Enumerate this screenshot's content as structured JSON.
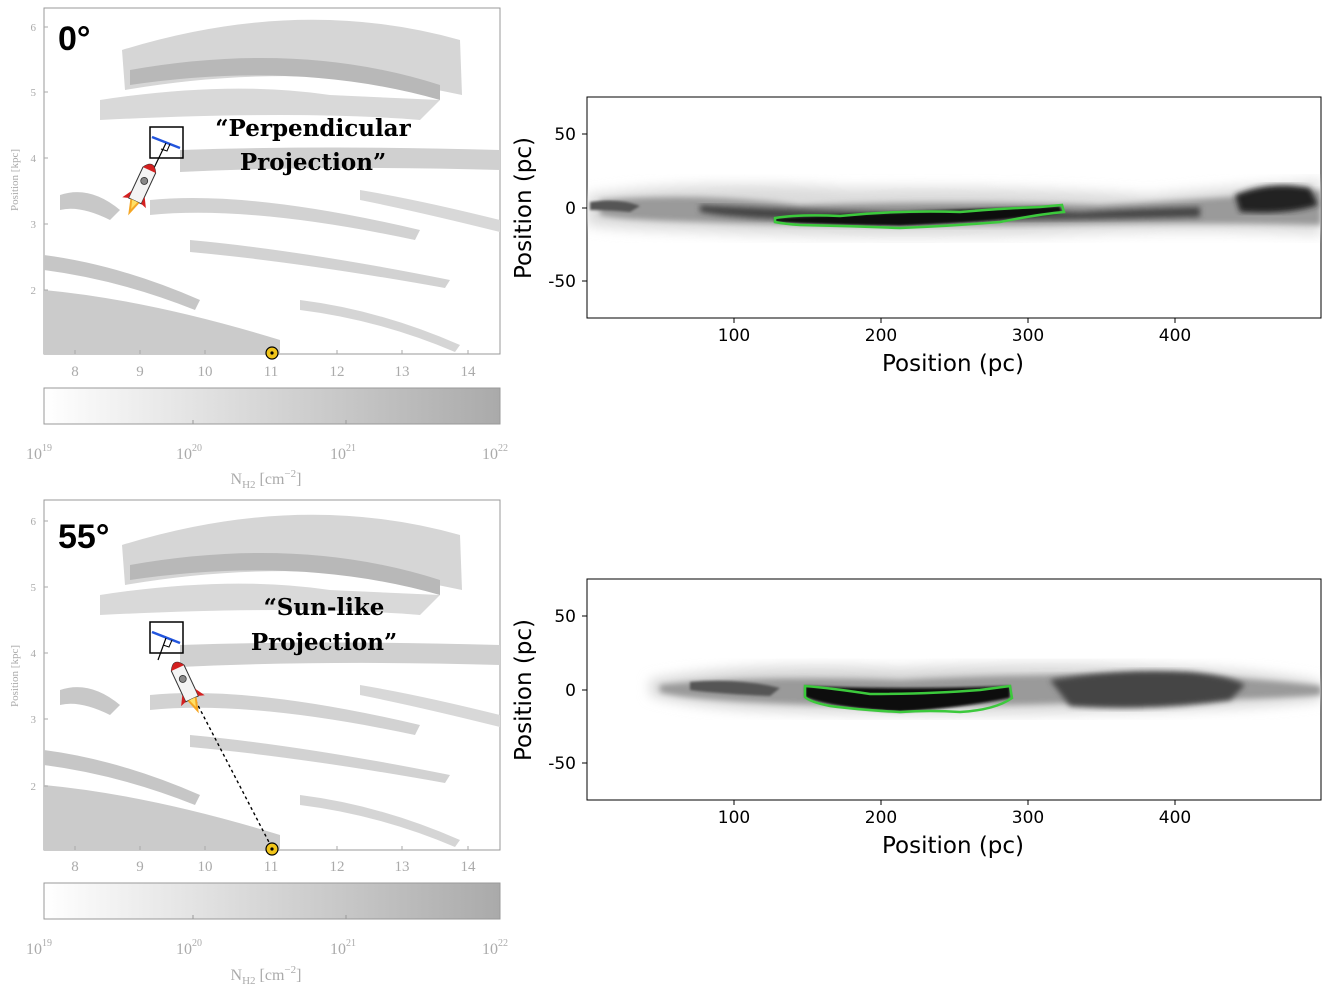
{
  "colors": {
    "map_gray": "#c8c8c8",
    "map_frame": "#999999",
    "axis_gray": "#aaaaaa",
    "filament": "#1a1a1a",
    "contour": "#3cc93c",
    "marker_blue": "#2255dd",
    "sun_fill": "#f0c419"
  },
  "icons": [
    "rocket-icon",
    "sun-icon"
  ],
  "panels": [
    {
      "angle_label": "0°",
      "annotation_line1": "“Perpendicular",
      "annotation_line2": "Projection”",
      "map_xlabel_ticks": [
        "8",
        "9",
        "10",
        "11",
        "12",
        "13",
        "14"
      ],
      "map_ylabel": "Position [kpc]",
      "map_ylabel_ticks": [
        "2",
        "3",
        "4",
        "5",
        "6"
      ],
      "colorbar_ticks": [
        "10",
        "10",
        "10",
        "10"
      ],
      "colorbar_exponents": [
        "19",
        "20",
        "21",
        "22"
      ],
      "colorbar_label_main": "N",
      "colorbar_label_sub": "H2",
      "colorbar_label_unit": " [cm",
      "colorbar_label_exp": "−2",
      "colorbar_label_close": "]",
      "sightline": "perpendicular"
    },
    {
      "angle_label": "55°",
      "annotation_line1": "“Sun-like",
      "annotation_line2": "Projection”",
      "map_xlabel_ticks": [
        "8",
        "9",
        "10",
        "11",
        "12",
        "13",
        "14"
      ],
      "map_ylabel": "Position [kpc]",
      "map_ylabel_ticks": [
        "2",
        "3",
        "4",
        "5",
        "6"
      ],
      "colorbar_ticks": [
        "10",
        "10",
        "10",
        "10"
      ],
      "colorbar_exponents": [
        "19",
        "20",
        "21",
        "22"
      ],
      "colorbar_label_main": "N",
      "colorbar_label_sub": "H2",
      "colorbar_label_unit": " [cm",
      "colorbar_label_exp": "−2",
      "colorbar_label_close": "]",
      "sightline": "sun-like"
    }
  ],
  "chart_data": [
    {
      "type": "heatmap",
      "title": "",
      "xlabel": "Position (pc)",
      "ylabel": "Position (pc)",
      "xlim": [
        0,
        500
      ],
      "ylim": [
        -75,
        75
      ],
      "xticks": [
        "100",
        "200",
        "300",
        "400"
      ],
      "yticks": [
        "50",
        "0",
        "-50"
      ],
      "grid": false,
      "contour_x_range_pc": [
        130,
        325
      ]
    },
    {
      "type": "heatmap",
      "title": "",
      "xlabel": "Position (pc)",
      "ylabel": "Position (pc)",
      "xlim": [
        0,
        500
      ],
      "ylim": [
        -75,
        75
      ],
      "xticks": [
        "100",
        "200",
        "300",
        "400"
      ],
      "yticks": [
        "50",
        "0",
        "-50"
      ],
      "grid": false,
      "contour_x_range_pc": [
        150,
        290
      ]
    }
  ]
}
